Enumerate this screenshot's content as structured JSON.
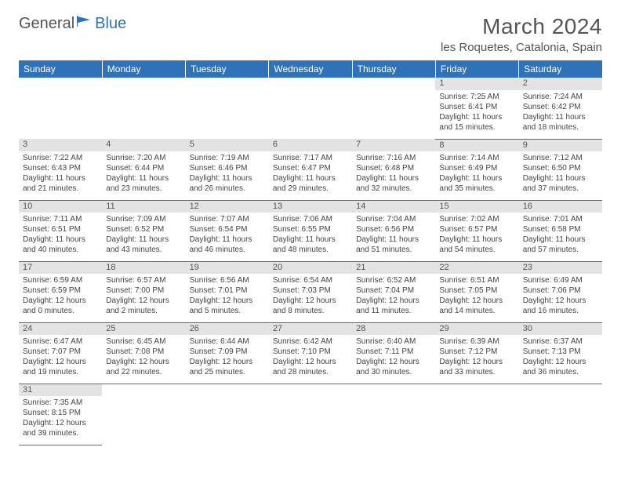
{
  "logo": {
    "text_left": "General",
    "text_right": "Blue"
  },
  "title": "March 2024",
  "location": "les Roquetes, Catalonia, Spain",
  "colors": {
    "header_bg": "#2f72b8",
    "header_text": "#ffffff",
    "daynum_bg": "#e3e3e3",
    "cell_border": "#2f72b8",
    "body_text": "#444444"
  },
  "weekdays": [
    "Sunday",
    "Monday",
    "Tuesday",
    "Wednesday",
    "Thursday",
    "Friday",
    "Saturday"
  ],
  "weeks": [
    [
      null,
      null,
      null,
      null,
      null,
      {
        "n": "1",
        "sunrise": "7:25 AM",
        "sunset": "6:41 PM",
        "daylight": "11 hours and 15 minutes."
      },
      {
        "n": "2",
        "sunrise": "7:24 AM",
        "sunset": "6:42 PM",
        "daylight": "11 hours and 18 minutes."
      }
    ],
    [
      {
        "n": "3",
        "sunrise": "7:22 AM",
        "sunset": "6:43 PM",
        "daylight": "11 hours and 21 minutes."
      },
      {
        "n": "4",
        "sunrise": "7:20 AM",
        "sunset": "6:44 PM",
        "daylight": "11 hours and 23 minutes."
      },
      {
        "n": "5",
        "sunrise": "7:19 AM",
        "sunset": "6:46 PM",
        "daylight": "11 hours and 26 minutes."
      },
      {
        "n": "6",
        "sunrise": "7:17 AM",
        "sunset": "6:47 PM",
        "daylight": "11 hours and 29 minutes."
      },
      {
        "n": "7",
        "sunrise": "7:16 AM",
        "sunset": "6:48 PM",
        "daylight": "11 hours and 32 minutes."
      },
      {
        "n": "8",
        "sunrise": "7:14 AM",
        "sunset": "6:49 PM",
        "daylight": "11 hours and 35 minutes."
      },
      {
        "n": "9",
        "sunrise": "7:12 AM",
        "sunset": "6:50 PM",
        "daylight": "11 hours and 37 minutes."
      }
    ],
    [
      {
        "n": "10",
        "sunrise": "7:11 AM",
        "sunset": "6:51 PM",
        "daylight": "11 hours and 40 minutes."
      },
      {
        "n": "11",
        "sunrise": "7:09 AM",
        "sunset": "6:52 PM",
        "daylight": "11 hours and 43 minutes."
      },
      {
        "n": "12",
        "sunrise": "7:07 AM",
        "sunset": "6:54 PM",
        "daylight": "11 hours and 46 minutes."
      },
      {
        "n": "13",
        "sunrise": "7:06 AM",
        "sunset": "6:55 PM",
        "daylight": "11 hours and 48 minutes."
      },
      {
        "n": "14",
        "sunrise": "7:04 AM",
        "sunset": "6:56 PM",
        "daylight": "11 hours and 51 minutes."
      },
      {
        "n": "15",
        "sunrise": "7:02 AM",
        "sunset": "6:57 PM",
        "daylight": "11 hours and 54 minutes."
      },
      {
        "n": "16",
        "sunrise": "7:01 AM",
        "sunset": "6:58 PM",
        "daylight": "11 hours and 57 minutes."
      }
    ],
    [
      {
        "n": "17",
        "sunrise": "6:59 AM",
        "sunset": "6:59 PM",
        "daylight": "12 hours and 0 minutes."
      },
      {
        "n": "18",
        "sunrise": "6:57 AM",
        "sunset": "7:00 PM",
        "daylight": "12 hours and 2 minutes."
      },
      {
        "n": "19",
        "sunrise": "6:56 AM",
        "sunset": "7:01 PM",
        "daylight": "12 hours and 5 minutes."
      },
      {
        "n": "20",
        "sunrise": "6:54 AM",
        "sunset": "7:03 PM",
        "daylight": "12 hours and 8 minutes."
      },
      {
        "n": "21",
        "sunrise": "6:52 AM",
        "sunset": "7:04 PM",
        "daylight": "12 hours and 11 minutes."
      },
      {
        "n": "22",
        "sunrise": "6:51 AM",
        "sunset": "7:05 PM",
        "daylight": "12 hours and 14 minutes."
      },
      {
        "n": "23",
        "sunrise": "6:49 AM",
        "sunset": "7:06 PM",
        "daylight": "12 hours and 16 minutes."
      }
    ],
    [
      {
        "n": "24",
        "sunrise": "6:47 AM",
        "sunset": "7:07 PM",
        "daylight": "12 hours and 19 minutes."
      },
      {
        "n": "25",
        "sunrise": "6:45 AM",
        "sunset": "7:08 PM",
        "daylight": "12 hours and 22 minutes."
      },
      {
        "n": "26",
        "sunrise": "6:44 AM",
        "sunset": "7:09 PM",
        "daylight": "12 hours and 25 minutes."
      },
      {
        "n": "27",
        "sunrise": "6:42 AM",
        "sunset": "7:10 PM",
        "daylight": "12 hours and 28 minutes."
      },
      {
        "n": "28",
        "sunrise": "6:40 AM",
        "sunset": "7:11 PM",
        "daylight": "12 hours and 30 minutes."
      },
      {
        "n": "29",
        "sunrise": "6:39 AM",
        "sunset": "7:12 PM",
        "daylight": "12 hours and 33 minutes."
      },
      {
        "n": "30",
        "sunrise": "6:37 AM",
        "sunset": "7:13 PM",
        "daylight": "12 hours and 36 minutes."
      }
    ],
    [
      {
        "n": "31",
        "sunrise": "7:35 AM",
        "sunset": "8:15 PM",
        "daylight": "12 hours and 39 minutes."
      },
      null,
      null,
      null,
      null,
      null,
      null
    ]
  ],
  "labels": {
    "sunrise": "Sunrise:",
    "sunset": "Sunset:",
    "daylight": "Daylight:"
  }
}
